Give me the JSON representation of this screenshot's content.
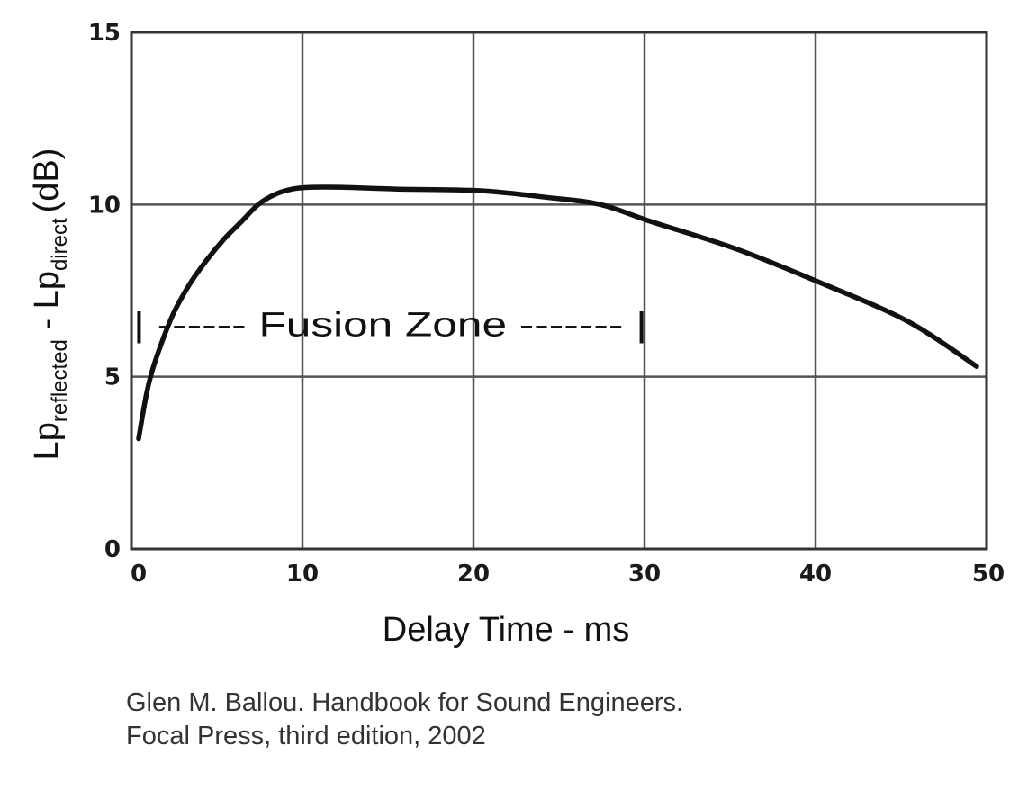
{
  "chart_data": {
    "type": "line",
    "xlabel": "Delay Time - ms",
    "ylabel": {
      "lp_reflected": "Lp",
      "reflected_sub": "reflected",
      "separator": " - ",
      "lp_direct": "Lp",
      "direct_sub": "direct",
      "unit": "(dB)"
    },
    "xlim": [
      0,
      50
    ],
    "ylim": [
      0,
      15
    ],
    "x_ticks": [
      "0",
      "10",
      "20",
      "30",
      "40",
      "50"
    ],
    "y_ticks": [
      "0",
      "5",
      "10",
      "15"
    ],
    "grid": true,
    "series": [
      {
        "x": [
          0,
          0.5,
          1,
          2,
          3,
          4,
          5,
          6,
          7,
          8,
          9,
          10,
          12,
          15,
          20,
          24,
          27,
          30,
          35,
          40,
          45,
          49
        ],
        "y": [
          3.2,
          4.6,
          5.5,
          6.8,
          7.7,
          8.4,
          9.0,
          9.5,
          10.0,
          10.3,
          10.45,
          10.5,
          10.5,
          10.45,
          10.4,
          10.2,
          10.0,
          9.5,
          8.7,
          7.7,
          6.6,
          5.3
        ]
      }
    ],
    "annotations": [
      {
        "text": "| ------ Fusion Zone ------- |",
        "x_start": 0,
        "x_end": 29,
        "y": 6.2
      }
    ]
  },
  "caption": {
    "line1": "Glen M. Ballou. Handbook for Sound Engineers.",
    "line2": "Focal Press, third edition, 2002"
  },
  "colors": {
    "line": "#111111",
    "grid": "#555555",
    "text": "#1a1a1a"
  }
}
